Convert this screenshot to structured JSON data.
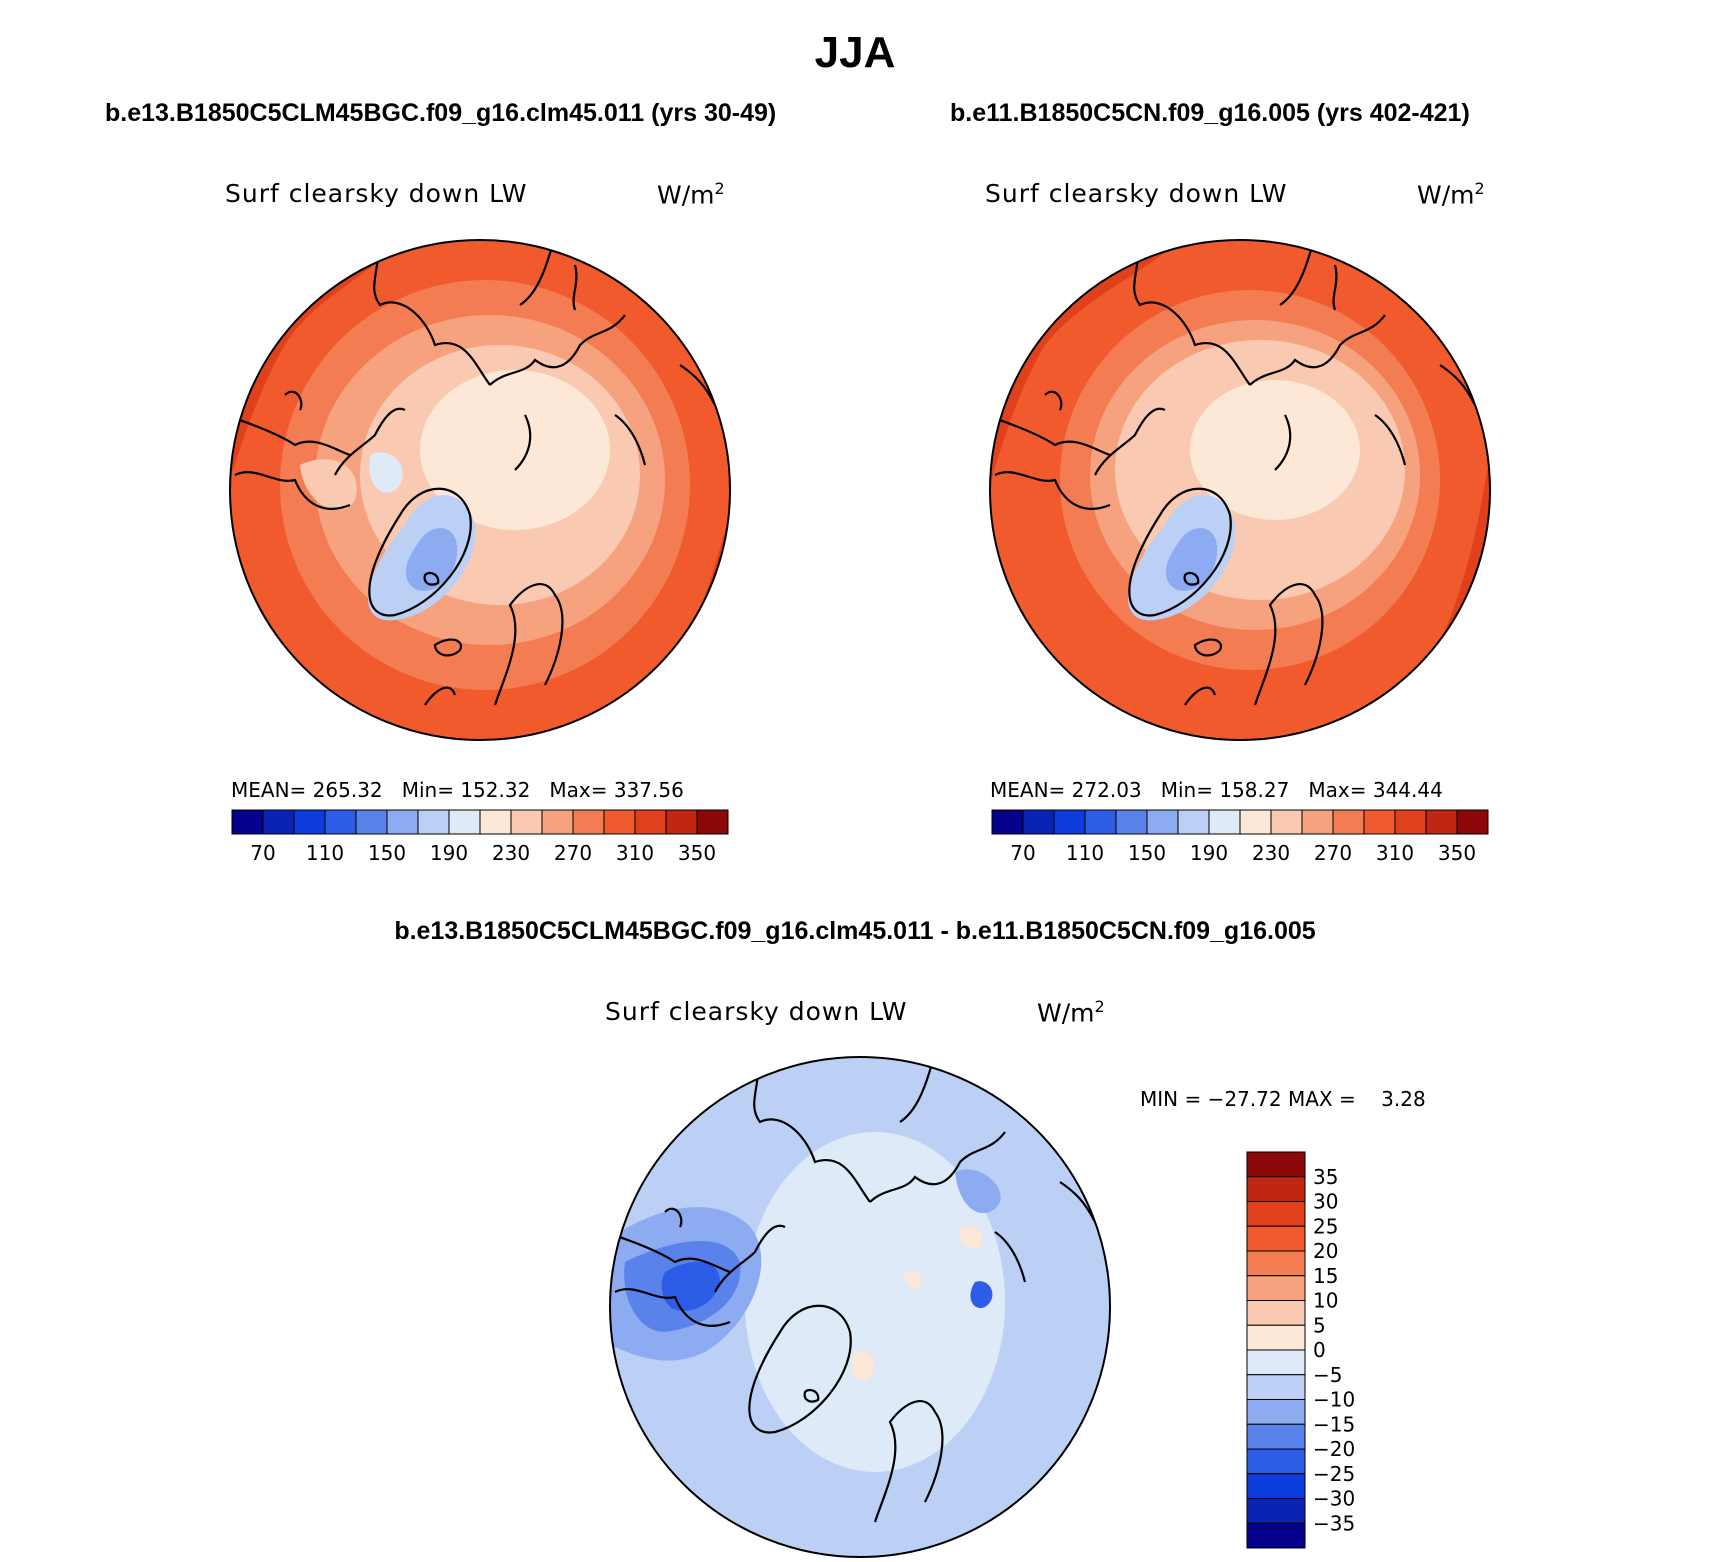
{
  "page": {
    "season": "JJA"
  },
  "panels": [
    {
      "case_title": "b.e13.B1850C5CLM45BGC.f09_g16.clm45.011 (yrs 30-49)",
      "var_label": "Surf clearsky down LW",
      "units_base": "W/m",
      "units_exp": "2",
      "stats": {
        "mean": "265.32",
        "min": "152.32",
        "max": "337.56"
      }
    },
    {
      "case_title": "b.e11.B1850C5CN.f09_g16.005 (yrs 402-421)",
      "var_label": "Surf clearsky down LW",
      "units_base": "W/m",
      "units_exp": "2",
      "stats": {
        "mean": "272.03",
        "min": "158.27",
        "max": "344.44"
      }
    }
  ],
  "diff_panel": {
    "title": "b.e13.B1850C5CLM45BGC.f09_g16.clm45.011 - b.e11.B1850C5CN.f09_g16.005",
    "var_label": "Surf clearsky down LW",
    "units_base": "W/m",
    "units_exp": "2",
    "min_label": "MIN = ",
    "min_value": "−27.72",
    "max_label": "MAX = ",
    "max_value": "3.28"
  },
  "chart_data": [
    {
      "type": "heatmap",
      "projection": "north-polar-stereographic",
      "title": "b.e13.B1850C5CLM45BGC.f09_g16.clm45.011 (yrs 30-49)",
      "variable": "Surf clearsky down LW",
      "units": "W/m2",
      "mean": 265.32,
      "min": 152.32,
      "max": 337.56,
      "colorbar_levels": [
        70,
        90,
        110,
        130,
        150,
        170,
        190,
        210,
        230,
        250,
        270,
        290,
        310,
        330,
        350
      ],
      "colorbar_tick_labels": [
        "70",
        "110",
        "150",
        "190",
        "230",
        "270",
        "310",
        "350"
      ],
      "colorbar_colors": [
        "#05008c",
        "#0a23b4",
        "#0d3cdc",
        "#2d5ce6",
        "#5a82eb",
        "#8cabf0",
        "#bcd0f5",
        "#dfeaf8",
        "#fde8d8",
        "#f9c9b1",
        "#f6a27e",
        "#f47c52",
        "#f05a2d",
        "#e0401c",
        "#c02612",
        "#8c0707"
      ]
    },
    {
      "type": "heatmap",
      "projection": "north-polar-stereographic",
      "title": "b.e11.B1850C5CN.f09_g16.005 (yrs 402-421)",
      "variable": "Surf clearsky down LW",
      "units": "W/m2",
      "mean": 272.03,
      "min": 158.27,
      "max": 344.44,
      "colorbar_levels": [
        70,
        90,
        110,
        130,
        150,
        170,
        190,
        210,
        230,
        250,
        270,
        290,
        310,
        330,
        350
      ],
      "colorbar_tick_labels": [
        "70",
        "110",
        "150",
        "190",
        "230",
        "270",
        "310",
        "350"
      ],
      "colorbar_colors": [
        "#05008c",
        "#0a23b4",
        "#0d3cdc",
        "#2d5ce6",
        "#5a82eb",
        "#8cabf0",
        "#bcd0f5",
        "#dfeaf8",
        "#fde8d8",
        "#f9c9b1",
        "#f6a27e",
        "#f47c52",
        "#f05a2d",
        "#e0401c",
        "#c02612",
        "#8c0707"
      ]
    },
    {
      "type": "heatmap",
      "projection": "north-polar-stereographic",
      "title": "b.e13.B1850C5CLM45BGC.f09_g16.clm45.011 - b.e11.B1850C5CN.f09_g16.005",
      "variable": "Surf clearsky down LW",
      "units": "W/m2",
      "min": -27.72,
      "max": 3.28,
      "colorbar_levels": [
        35,
        30,
        25,
        20,
        15,
        10,
        5,
        0,
        -5,
        -10,
        -15,
        -20,
        -25,
        -30,
        -35
      ],
      "colorbar_tick_labels": [
        "35",
        "30",
        "25",
        "20",
        "15",
        "10",
        "5",
        "0",
        "−5",
        "−10",
        "−15",
        "−20",
        "−25",
        "−30",
        "−35"
      ],
      "colorbar_colors": [
        "#8c0707",
        "#c02612",
        "#e0401c",
        "#f05a2d",
        "#f47c52",
        "#f6a27e",
        "#f9c9b1",
        "#fde8d8",
        "#dfeaf8",
        "#bcd0f5",
        "#8cabf0",
        "#5a82eb",
        "#2d5ce6",
        "#0d3cdc",
        "#0a23b4",
        "#05008c"
      ]
    }
  ]
}
